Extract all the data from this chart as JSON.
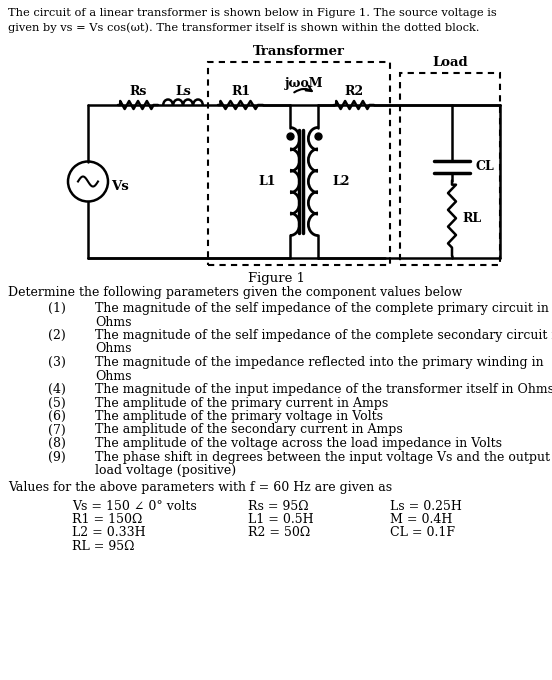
{
  "bg_color": "#ffffff",
  "text_color": "#000000",
  "title_line1": "The circuit of a linear transformer is shown below in Figure 1. The source voltage is",
  "title_line2": "given by vs = Vs cos(ωt). The transformer itself is shown within the dotted block.",
  "transformer_label": "Transformer",
  "load_label": "Load",
  "jwM_label": "jωoM",
  "figure_label": "Figure 1",
  "determine_text": "Determine the following parameters given the component values below",
  "items": [
    [
      "(1)",
      "The magnitude of the self impedance of the complete primary circuit in",
      "Ohms"
    ],
    [
      "(2)",
      "The magnitude of the self impedance of the complete secondary circuit in",
      "Ohms"
    ],
    [
      "(3)",
      "The magnitude of the impedance reflected into the primary winding in",
      "Ohms"
    ],
    [
      "(4)",
      "The magnitude of the input impedance of the transformer itself in Ohms",
      ""
    ],
    [
      "(5)",
      "The amplitude of the primary current in Amps",
      ""
    ],
    [
      "(6)",
      "The amplitude of the primary voltage in Volts",
      ""
    ],
    [
      "(7)",
      "The amplitude of the secondary current in Amps",
      ""
    ],
    [
      "(8)",
      "The amplitude of the voltage across the load impedance in Volts",
      ""
    ],
    [
      "(9)",
      "The phase shift in degrees between the input voltage Vs and the output",
      "load voltage (positive)"
    ]
  ],
  "values_intro": "Values for the above parameters with f = 60 Hz are given as",
  "col1": [
    "Vs = 150 ∠ 0° volts",
    "R1 = 150Ω",
    "L2 = 0.33H",
    "RL = 95Ω"
  ],
  "col2": [
    "Rs = 95Ω",
    "L1 = 0.5H",
    "R2 = 50Ω"
  ],
  "col3": [
    "Ls = 0.25H",
    "M = 0.4H",
    "CL = 0.1F"
  ]
}
